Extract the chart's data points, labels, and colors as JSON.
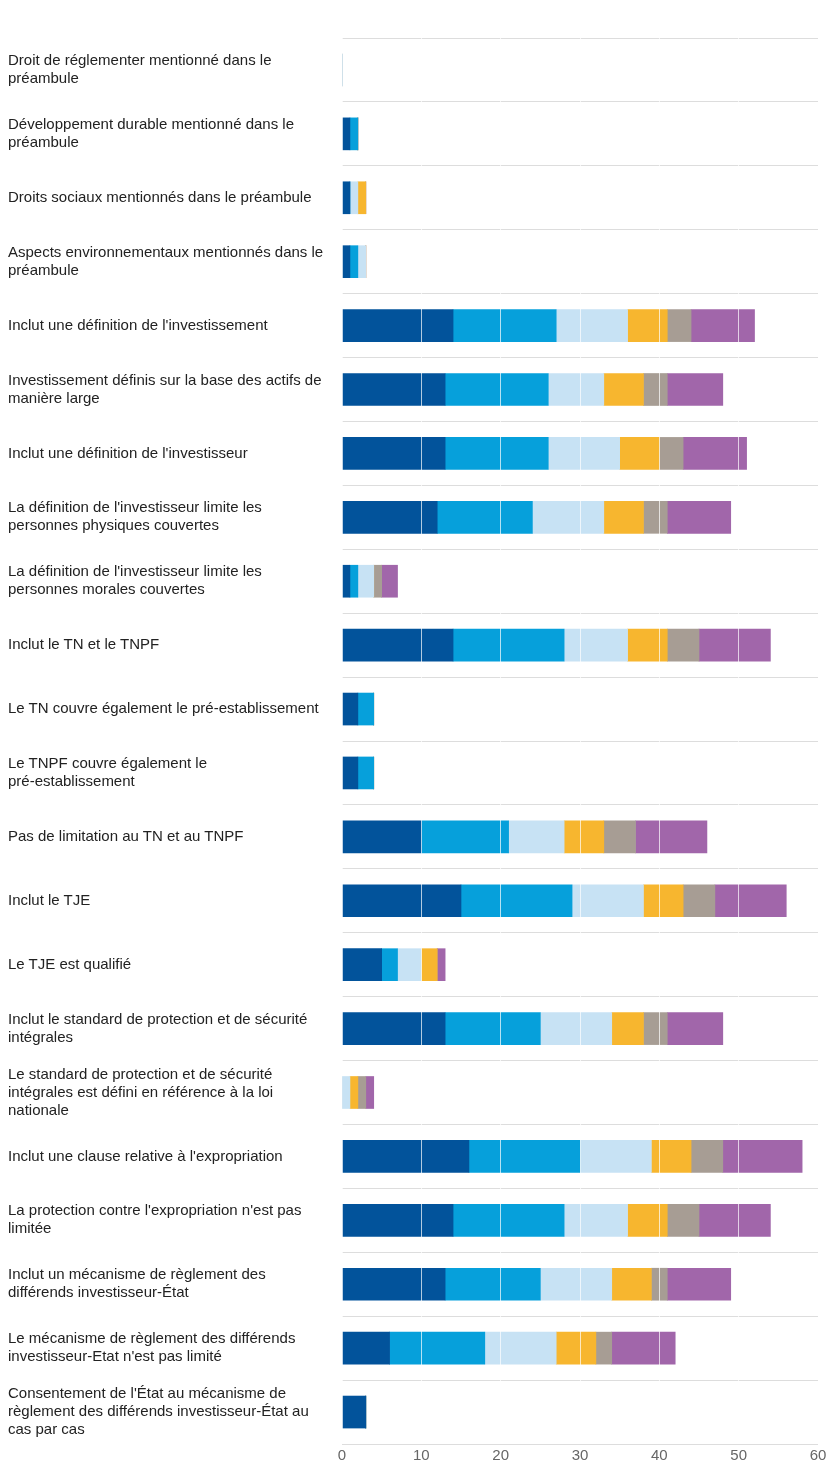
{
  "chart_data": {
    "type": "bar",
    "orientation": "horizontal",
    "stacked": true,
    "grid": true,
    "legend": false,
    "categories": [
      "Droit de réglementer mentionné dans le préambule",
      "Développement durable mentionné dans le préambule",
      "Droits sociaux mentionnés dans le préambule",
      "Aspects environnementaux mentionnés dans le préambule",
      "Inclut une définition de l'investissement",
      "Investissement définis sur la base des actifs de manière large",
      "Inclut une définition de l'investisseur",
      "La définition de l'investisseur limite les personnes physiques couvertes",
      "La définition de l'investisseur limite les personnes morales couvertes",
      "Inclut le TN et le TNPF",
      "Le TN couvre également le pré-establissement",
      "Le TNPF couvre également le pré-establissement",
      "Pas de limitation au TN et au TNPF",
      "Inclut le TJE",
      "Le TJE est qualifié",
      "Inclut le standard de protection et de sécurité intégrales",
      "Le standard de protection et de sécurité intégrales est défini en référence à la loi nationale",
      "Inclut une clause relative à l'expropriation",
      "La protection contre l'expropriation n'est pas limitée",
      "Inclut un mécanisme de règlement des différends investisseur-État",
      "Le mécanisme de règlement des différends investisseur-Etat n'est pas limité",
      "Consentement de l'État au mécanisme de règlement des différends investisseur-État au cas par cas"
    ],
    "series": [
      {
        "color": "#02539b",
        "values": [
          0,
          1,
          1,
          1,
          14,
          13,
          13,
          12,
          1,
          14,
          2,
          2,
          10,
          15,
          5,
          13,
          0,
          16,
          14,
          13,
          6,
          3
        ]
      },
      {
        "color": "#06a0db",
        "values": [
          0,
          1,
          0,
          1,
          13,
          13,
          13,
          12,
          1,
          14,
          2,
          2,
          11,
          14,
          2,
          12,
          0,
          14,
          14,
          12,
          12,
          0
        ]
      },
      {
        "color": "#c7e2f4",
        "values": [
          0,
          0,
          1,
          1,
          9,
          7,
          9,
          9,
          2,
          8,
          0,
          0,
          7,
          9,
          3,
          9,
          1,
          9,
          8,
          9,
          9,
          0
        ]
      },
      {
        "color": "#f7b62f",
        "values": [
          0,
          0,
          1,
          0,
          5,
          5,
          5,
          5,
          0,
          5,
          0,
          0,
          5,
          5,
          2,
          4,
          1,
          5,
          5,
          5,
          5,
          0
        ]
      },
      {
        "color": "#a79d94",
        "values": [
          0,
          0,
          0,
          0,
          3,
          3,
          3,
          3,
          1,
          4,
          0,
          0,
          4,
          4,
          0,
          3,
          1,
          4,
          4,
          2,
          2,
          0
        ]
      },
      {
        "color": "#a166aa",
        "values": [
          0,
          0,
          0,
          0,
          8,
          7,
          8,
          8,
          2,
          9,
          0,
          0,
          9,
          9,
          1,
          7,
          1,
          10,
          9,
          8,
          8,
          0
        ]
      }
    ],
    "xlim": [
      0,
      60
    ],
    "xticks": [
      0,
      10,
      20,
      30,
      40,
      50,
      60
    ]
  }
}
